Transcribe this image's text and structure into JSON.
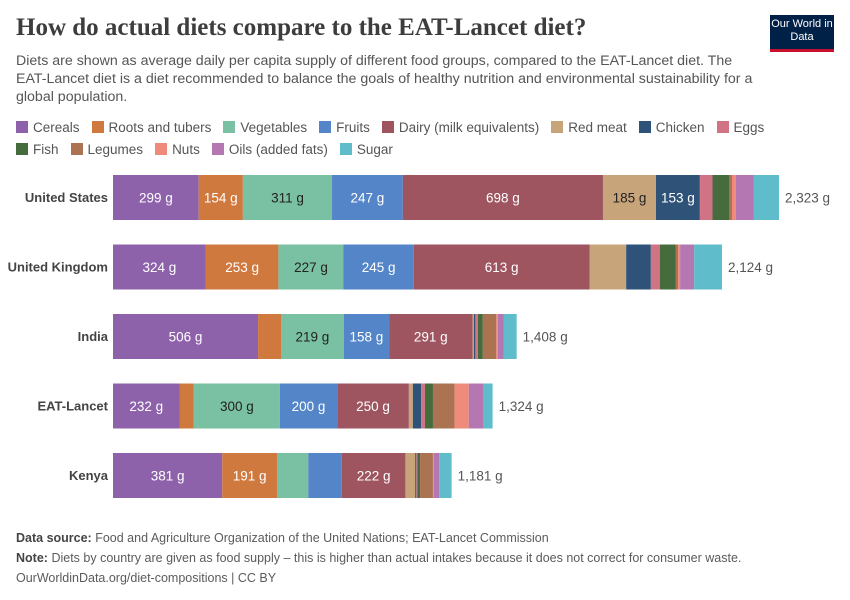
{
  "header": {
    "title": "How do actual diets compare to the EAT-Lancet diet?",
    "subtitle": "Diets are shown as average daily per capita supply of different food groups, compared to the EAT-Lancet diet. The EAT-Lancet diet is a diet recommended to balance the goals of healthy nutrition and environmental sustainability for a global population.",
    "logo": "Our World in Data"
  },
  "chart_data": {
    "type": "bar",
    "orientation": "horizontal",
    "stacked": true,
    "unit": "g",
    "legend_placement": "top",
    "categories": [
      "United States",
      "United Kingdom",
      "India",
      "EAT-Lancet",
      "Kenya"
    ],
    "totals": [
      "2,323 g",
      "2,124 g",
      "1,408 g",
      "1,324 g",
      "1,181 g"
    ],
    "series": [
      {
        "name": "Cereals",
        "color": "#8e62aa",
        "values": [
          299,
          324,
          506,
          232,
          381
        ]
      },
      {
        "name": "Roots and tubers",
        "color": "#d0793f",
        "values": [
          154,
          253,
          80,
          50,
          191
        ]
      },
      {
        "name": "Vegetables",
        "color": "#7ac0a2",
        "values": [
          311,
          227,
          219,
          300,
          109
        ]
      },
      {
        "name": "Fruits",
        "color": "#5385c8",
        "values": [
          247,
          245,
          158,
          200,
          117
        ]
      },
      {
        "name": "Dairy (milk equivalents)",
        "color": "#9e5560",
        "values": [
          698,
          613,
          291,
          250,
          222
        ]
      },
      {
        "name": "Red meat",
        "color": "#c8a47b",
        "values": [
          185,
          128,
          5,
          14,
          34
        ]
      },
      {
        "name": "Chicken",
        "color": "#2f5278",
        "values": [
          153,
          86,
          5,
          29,
          4
        ]
      },
      {
        "name": "Eggs",
        "color": "#d07385",
        "values": [
          44,
          31,
          9,
          13,
          4
        ]
      },
      {
        "name": "Fish",
        "color": "#466c3d",
        "values": [
          59,
          55,
          17,
          28,
          9
        ]
      },
      {
        "name": "Legumes",
        "color": "#ab7352",
        "values": [
          9,
          9,
          47,
          75,
          45
        ]
      },
      {
        "name": "Nuts",
        "color": "#ee8b7a",
        "values": [
          13,
          7,
          5,
          50,
          3
        ]
      },
      {
        "name": "Oils (added fats)",
        "color": "#b577b1",
        "values": [
          62,
          49,
          20,
          52,
          19
        ]
      },
      {
        "name": "Sugar",
        "color": "#5ebccb",
        "values": [
          89,
          97,
          46,
          31,
          43
        ]
      }
    ],
    "xlim": [
      0,
      2323
    ],
    "grid": false
  },
  "footer": {
    "source_label": "Data source:",
    "source": "Food and Agriculture Organization of the United Nations; EAT-Lancet Commission",
    "note_label": "Note:",
    "note": "Diets by country are given as food supply – this is higher than actual intakes because it does not correct for consumer waste.",
    "url": "OurWorldinData.org/diet-compositions | CC BY"
  }
}
